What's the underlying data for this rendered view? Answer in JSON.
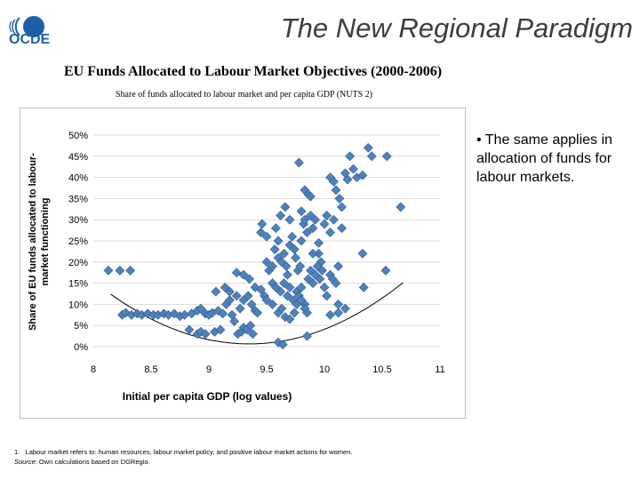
{
  "header": {
    "logo_text": "OCDE",
    "title": "The New Regional Paradigm"
  },
  "bullet": {
    "marker": "•",
    "text": "The same applies in allocation of funds for labour markets."
  },
  "footnote": {
    "note_number": "1.",
    "note_text": "Labour market refers to: human resources, labour market policy, and positive labour market actions for women.",
    "source_label": "Source",
    "source_text": ": Own calculations based on DGRegio."
  },
  "colors": {
    "marker": "#4f81bd",
    "marker_edge": "#2e5a8c",
    "title": "#3c3c3c",
    "logo": "#1f5fa8"
  },
  "chart_data": {
    "type": "scatter",
    "title": "EU Funds Allocated to Labour Market Objectives (2000-2006)",
    "subtitle": "Share of funds allocated to labour market and per capita GDP (NUTS 2)",
    "xlabel": "Initial per capita GDP (log values)",
    "ylabel": "Share of EU funds allocated to labour-market functioning",
    "xlim": [
      8,
      11
    ],
    "ylim": [
      0,
      0.5
    ],
    "x_ticks": [
      8,
      8.5,
      9,
      9.5,
      10,
      10.5,
      11
    ],
    "x_tick_labels": [
      "8",
      "8.5",
      "9",
      "9.5",
      "10",
      "10.5",
      "11"
    ],
    "y_ticks": [
      0,
      0.05,
      0.1,
      0.15,
      0.2,
      0.25,
      0.3,
      0.35,
      0.4,
      0.45,
      0.5
    ],
    "y_tick_labels": [
      "0%",
      "5%",
      "10%",
      "15%",
      "20%",
      "25%",
      "30%",
      "35%",
      "40%",
      "45%",
      "50%"
    ],
    "grid": "horizontal",
    "points": [
      [
        8.13,
        0.18
      ],
      [
        8.23,
        0.18
      ],
      [
        8.32,
        0.18
      ],
      [
        8.25,
        0.075
      ],
      [
        8.28,
        0.08
      ],
      [
        8.33,
        0.075
      ],
      [
        8.38,
        0.078
      ],
      [
        8.42,
        0.075
      ],
      [
        8.47,
        0.078
      ],
      [
        8.52,
        0.075
      ],
      [
        8.56,
        0.075
      ],
      [
        8.61,
        0.078
      ],
      [
        8.65,
        0.075
      ],
      [
        8.7,
        0.078
      ],
      [
        8.75,
        0.072
      ],
      [
        8.79,
        0.075
      ],
      [
        8.85,
        0.078
      ],
      [
        8.9,
        0.085
      ],
      [
        8.93,
        0.09
      ],
      [
        8.97,
        0.078
      ],
      [
        9.0,
        0.075
      ],
      [
        8.83,
        0.04
      ],
      [
        8.9,
        0.03
      ],
      [
        8.93,
        0.035
      ],
      [
        8.97,
        0.03
      ],
      [
        9.05,
        0.035
      ],
      [
        9.1,
        0.04
      ],
      [
        9.03,
        0.08
      ],
      [
        9.08,
        0.085
      ],
      [
        9.12,
        0.078
      ],
      [
        9.15,
        0.1
      ],
      [
        9.18,
        0.11
      ],
      [
        9.2,
        0.075
      ],
      [
        9.22,
        0.06
      ],
      [
        9.25,
        0.03
      ],
      [
        9.28,
        0.035
      ],
      [
        9.3,
        0.045
      ],
      [
        9.33,
        0.04
      ],
      [
        9.36,
        0.05
      ],
      [
        9.38,
        0.03
      ],
      [
        9.06,
        0.13
      ],
      [
        9.14,
        0.14
      ],
      [
        9.18,
        0.13
      ],
      [
        9.24,
        0.12
      ],
      [
        9.27,
        0.09
      ],
      [
        9.3,
        0.11
      ],
      [
        9.34,
        0.12
      ],
      [
        9.37,
        0.1
      ],
      [
        9.4,
        0.085
      ],
      [
        9.42,
        0.08
      ],
      [
        9.24,
        0.175
      ],
      [
        9.3,
        0.17
      ],
      [
        9.35,
        0.16
      ],
      [
        9.4,
        0.14
      ],
      [
        9.45,
        0.135
      ],
      [
        9.48,
        0.12
      ],
      [
        9.5,
        0.11
      ],
      [
        9.45,
        0.27
      ],
      [
        9.46,
        0.29
      ],
      [
        9.5,
        0.26
      ],
      [
        9.5,
        0.2
      ],
      [
        9.52,
        0.18
      ],
      [
        9.55,
        0.19
      ],
      [
        9.57,
        0.23
      ],
      [
        9.58,
        0.28
      ],
      [
        9.6,
        0.25
      ],
      [
        9.62,
        0.31
      ],
      [
        9.6,
        0.21
      ],
      [
        9.63,
        0.2
      ],
      [
        9.65,
        0.22
      ],
      [
        9.67,
        0.19
      ],
      [
        9.68,
        0.17
      ],
      [
        9.7,
        0.24
      ],
      [
        9.72,
        0.26
      ],
      [
        9.74,
        0.23
      ],
      [
        9.75,
        0.21
      ],
      [
        9.77,
        0.18
      ],
      [
        9.79,
        0.19
      ],
      [
        9.8,
        0.25
      ],
      [
        9.82,
        0.29
      ],
      [
        9.85,
        0.27
      ],
      [
        9.88,
        0.31
      ],
      [
        9.9,
        0.28
      ],
      [
        9.92,
        0.3
      ],
      [
        9.95,
        0.22
      ],
      [
        9.97,
        0.2
      ],
      [
        10.0,
        0.29
      ],
      [
        10.02,
        0.31
      ],
      [
        10.05,
        0.27
      ],
      [
        10.08,
        0.3
      ],
      [
        9.55,
        0.15
      ],
      [
        9.58,
        0.14
      ],
      [
        9.62,
        0.13
      ],
      [
        9.65,
        0.15
      ],
      [
        9.68,
        0.12
      ],
      [
        9.7,
        0.14
      ],
      [
        9.73,
        0.11
      ],
      [
        9.76,
        0.13
      ],
      [
        9.78,
        0.12
      ],
      [
        9.8,
        0.14
      ],
      [
        9.83,
        0.1
      ],
      [
        9.86,
        0.16
      ],
      [
        9.88,
        0.18
      ],
      [
        9.9,
        0.15
      ],
      [
        9.92,
        0.17
      ],
      [
        9.94,
        0.19
      ],
      [
        9.96,
        0.16
      ],
      [
        9.98,
        0.18
      ],
      [
        10.0,
        0.14
      ],
      [
        10.02,
        0.12
      ],
      [
        10.05,
        0.17
      ],
      [
        10.07,
        0.16
      ],
      [
        10.1,
        0.15
      ],
      [
        10.12,
        0.19
      ],
      [
        9.55,
        0.1
      ],
      [
        9.6,
        0.08
      ],
      [
        9.63,
        0.09
      ],
      [
        9.66,
        0.07
      ],
      [
        9.7,
        0.065
      ],
      [
        9.74,
        0.08
      ],
      [
        9.76,
        0.1
      ],
      [
        9.8,
        0.11
      ],
      [
        9.83,
        0.09
      ],
      [
        9.85,
        0.08
      ],
      [
        9.6,
        0.01
      ],
      [
        9.64,
        0.005
      ],
      [
        9.85,
        0.025
      ],
      [
        10.05,
        0.075
      ],
      [
        10.12,
        0.08
      ],
      [
        10.18,
        0.09
      ],
      [
        9.78,
        0.435
      ],
      [
        9.83,
        0.37
      ],
      [
        9.86,
        0.36
      ],
      [
        9.88,
        0.355
      ],
      [
        9.8,
        0.32
      ],
      [
        9.83,
        0.3
      ],
      [
        10.05,
        0.4
      ],
      [
        10.08,
        0.39
      ],
      [
        10.1,
        0.37
      ],
      [
        10.13,
        0.35
      ],
      [
        10.15,
        0.33
      ],
      [
        10.18,
        0.41
      ],
      [
        10.2,
        0.395
      ],
      [
        10.22,
        0.45
      ],
      [
        10.25,
        0.42
      ],
      [
        10.28,
        0.4
      ],
      [
        10.33,
        0.405
      ],
      [
        10.38,
        0.47
      ],
      [
        10.41,
        0.45
      ],
      [
        10.54,
        0.45
      ],
      [
        10.66,
        0.33
      ],
      [
        10.53,
        0.18
      ],
      [
        10.33,
        0.22
      ],
      [
        10.34,
        0.14
      ],
      [
        10.15,
        0.28
      ],
      [
        10.12,
        0.1
      ],
      [
        9.66,
        0.33
      ],
      [
        9.7,
        0.3
      ],
      [
        9.9,
        0.22
      ],
      [
        9.95,
        0.245
      ]
    ],
    "trendline": {
      "type": "polynomial",
      "degree": 2,
      "coefficients": [
        0.0818,
        -0.2208,
        0.1555
      ],
      "x_range": [
        8.15,
        10.68
      ]
    }
  }
}
